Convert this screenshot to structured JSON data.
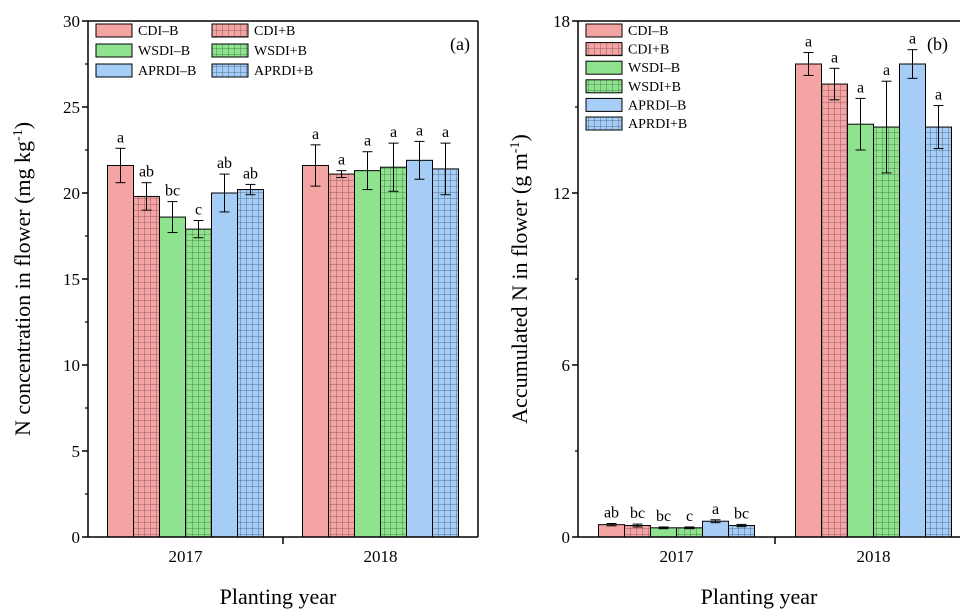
{
  "colors": {
    "CDI": "#f4a5a3",
    "WSDI": "#8fe38f",
    "APRDI": "#a6cdf5"
  },
  "legend": [
    "CDI–B",
    "CDI+B",
    "WSDI–B",
    "WSDI+B",
    "APRDI–B",
    "APRDI+B"
  ],
  "chart_data": [
    {
      "type": "bar",
      "panel": "(a)",
      "ylabel_main": "N concentration in flower (mg kg",
      "ylabel_sup": "-1",
      "ylabel_end": ")",
      "xlabel": "Planting year",
      "categories": [
        "2017",
        "2018"
      ],
      "ylim": [
        0,
        30
      ],
      "yticks": [
        0,
        5,
        10,
        15,
        20,
        25,
        30
      ],
      "legend_columns": 2,
      "series": [
        {
          "name": "CDI–B",
          "values": [
            21.6,
            21.6
          ],
          "errors": [
            1.0,
            1.2
          ],
          "letters": [
            "a",
            "a"
          ],
          "hatch": false,
          "color": "CDI"
        },
        {
          "name": "CDI+B",
          "values": [
            19.8,
            21.1
          ],
          "errors": [
            0.8,
            0.2
          ],
          "letters": [
            "ab",
            "a"
          ],
          "hatch": true,
          "color": "CDI"
        },
        {
          "name": "WSDI–B",
          "values": [
            18.6,
            21.3
          ],
          "errors": [
            0.9,
            1.1
          ],
          "letters": [
            "bc",
            "a"
          ],
          "hatch": false,
          "color": "WSDI"
        },
        {
          "name": "WSDI+B",
          "values": [
            17.9,
            21.5
          ],
          "errors": [
            0.5,
            1.4
          ],
          "letters": [
            "c",
            "a"
          ],
          "hatch": true,
          "color": "WSDI"
        },
        {
          "name": "APRDI–B",
          "values": [
            20.0,
            21.9
          ],
          "errors": [
            1.1,
            1.1
          ],
          "letters": [
            "ab",
            "a"
          ],
          "hatch": false,
          "color": "APRDI"
        },
        {
          "name": "APRDI+B",
          "values": [
            20.2,
            21.4
          ],
          "errors": [
            0.3,
            1.5
          ],
          "letters": [
            "ab",
            "a"
          ],
          "hatch": true,
          "color": "APRDI"
        }
      ]
    },
    {
      "type": "bar",
      "panel": "(b)",
      "ylabel_main": "Accumulated N in flower (g m",
      "ylabel_sup": "-1",
      "ylabel_end": ")",
      "xlabel": "Planting year",
      "categories": [
        "2017",
        "2018"
      ],
      "ylim": [
        0,
        18
      ],
      "yticks": [
        0,
        6,
        12,
        18
      ],
      "legend_columns": 1,
      "series": [
        {
          "name": "CDI–B",
          "values": [
            0.43,
            16.5
          ],
          "errors": [
            0.04,
            0.4
          ],
          "letters": [
            "ab",
            "a"
          ],
          "hatch": false,
          "color": "CDI"
        },
        {
          "name": "CDI+B",
          "values": [
            0.4,
            15.8
          ],
          "errors": [
            0.05,
            0.55
          ],
          "letters": [
            "bc",
            "a"
          ],
          "hatch": true,
          "color": "CDI"
        },
        {
          "name": "WSDI–B",
          "values": [
            0.32,
            14.4
          ],
          "errors": [
            0.03,
            0.9
          ],
          "letters": [
            "bc",
            "a"
          ],
          "hatch": false,
          "color": "WSDI"
        },
        {
          "name": "WSDI+B",
          "values": [
            0.32,
            14.3
          ],
          "errors": [
            0.03,
            1.6
          ],
          "letters": [
            "c",
            "a"
          ],
          "hatch": true,
          "color": "WSDI"
        },
        {
          "name": "APRDI–B",
          "values": [
            0.55,
            16.5
          ],
          "errors": [
            0.05,
            0.5
          ],
          "letters": [
            "a",
            "a"
          ],
          "hatch": false,
          "color": "APRDI"
        },
        {
          "name": "APRDI+B",
          "values": [
            0.4,
            14.3
          ],
          "errors": [
            0.04,
            0.75
          ],
          "letters": [
            "bc",
            "a"
          ],
          "hatch": true,
          "color": "APRDI"
        }
      ]
    }
  ]
}
